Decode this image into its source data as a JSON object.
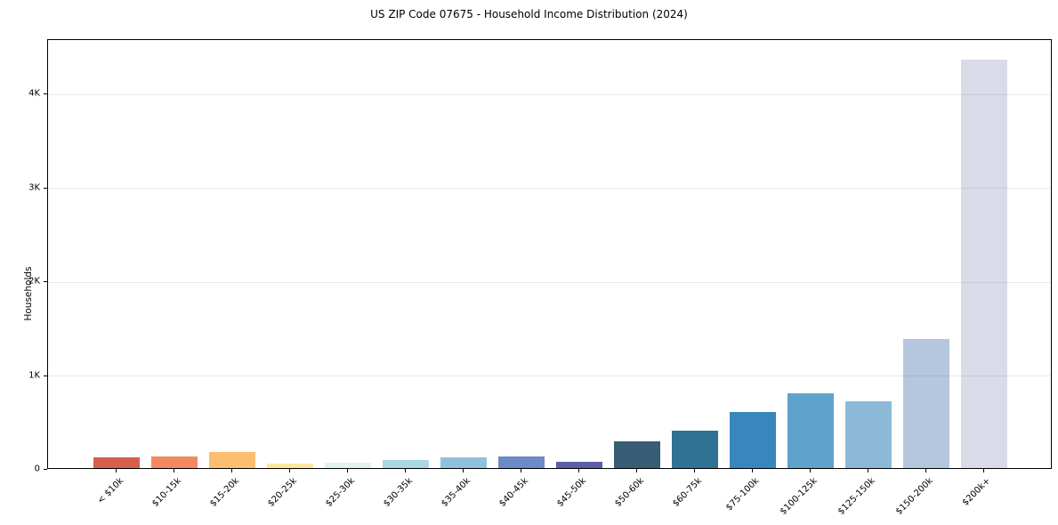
{
  "chart_data": {
    "type": "bar",
    "title": "US ZIP Code 07675 - Household Income Distribution (2024)",
    "xlabel": "",
    "ylabel": "Households",
    "categories": [
      "< $10k",
      "$10-15k",
      "$15-20k",
      "$20-25k",
      "$25-30k",
      "$30-35k",
      "$35-40k",
      "$40-45k",
      "$45-50k",
      "$50-60k",
      "$60-75k",
      "$75-100k",
      "$100-125k",
      "$125-150k",
      "$150-200k",
      "$200k+"
    ],
    "values": [
      115,
      125,
      175,
      45,
      55,
      85,
      110,
      120,
      65,
      285,
      400,
      600,
      800,
      715,
      1380,
      4360
    ],
    "bar_colors": [
      "#d6604d",
      "#f4895f",
      "#fdbe70",
      "#fbe8a0",
      "#e1f3f0",
      "#aad8e6",
      "#8fc1dd",
      "#6b8ac6",
      "#5b5ea6",
      "#365d73",
      "#2f7294",
      "#3786bd",
      "#5fa3cc",
      "#8db9d9",
      "#b4c7de",
      "#d9dce8"
    ],
    "yticks": {
      "values": [
        0,
        1000,
        2000,
        3000,
        4000
      ],
      "labels": [
        "0",
        "1K",
        "2K",
        "3K",
        "4K"
      ]
    },
    "ylim": [
      0,
      4583
    ],
    "grid": "horizontal",
    "legend": "none"
  },
  "colors": {
    "background": "#ffffff",
    "spine": "#000000",
    "text": "#000000",
    "grid": "#e9e9ef"
  }
}
